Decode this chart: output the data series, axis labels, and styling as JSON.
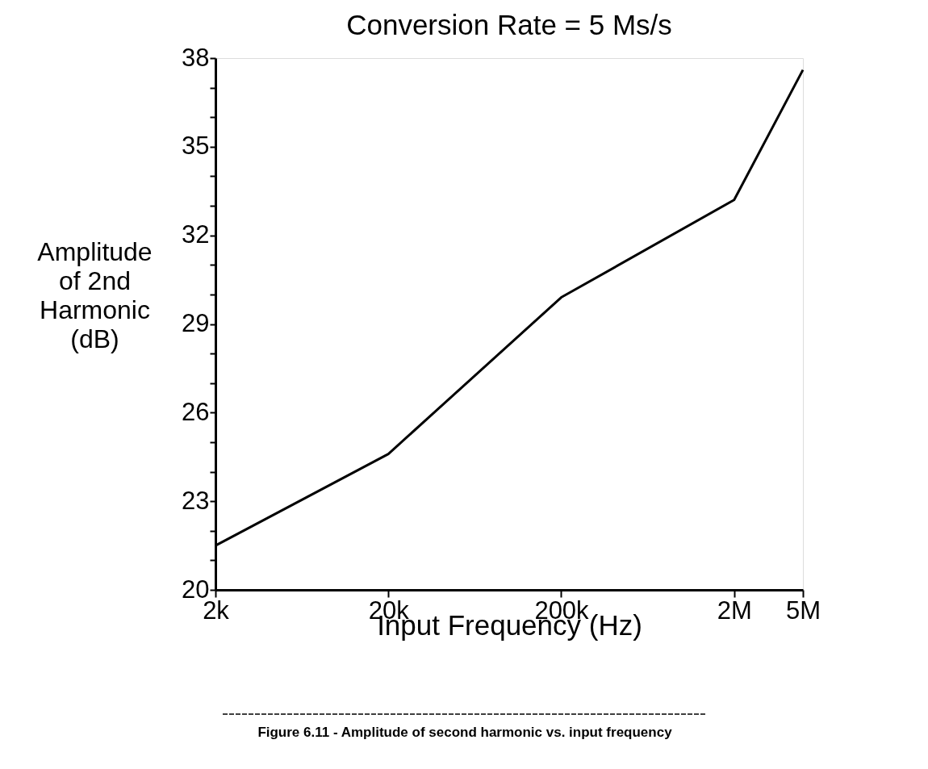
{
  "chart_data": {
    "type": "line",
    "title": "Conversion Rate = 5 Ms/s",
    "xlabel": "Input Frequency (Hz)",
    "ylabel": "Amplitude of 2nd Harmonic (dB)",
    "x": [
      2000,
      20000,
      200000,
      2000000,
      5000000
    ],
    "series": [
      {
        "color": "#000000",
        "values": [
          21.5,
          24.6,
          29.9,
          33.2,
          37.6
        ]
      }
    ],
    "log": "x",
    "xlim": [
      2000,
      5000000
    ],
    "xticks": [
      {
        "value": 2000,
        "label": "2k"
      },
      {
        "value": 20000,
        "label": "20k"
      },
      {
        "value": 200000,
        "label": "200k"
      },
      {
        "value": 2000000,
        "label": "2M"
      },
      {
        "value": 5000000,
        "label": "5M"
      }
    ],
    "ylim": [
      20,
      38
    ],
    "yticks": [
      20,
      {
        "value": 21,
        "label": null
      },
      {
        "value": 22,
        "label": null
      },
      23,
      {
        "value": 24,
        "label": null
      },
      {
        "value": 25,
        "label": null
      },
      26,
      {
        "value": 27,
        "label": null
      },
      {
        "value": 28,
        "label": null
      },
      29,
      {
        "value": 30,
        "label": null
      },
      {
        "value": 31,
        "label": null
      },
      32,
      {
        "value": 33,
        "label": null
      },
      {
        "value": 34,
        "label": null
      },
      35,
      {
        "value": 36,
        "label": null
      },
      {
        "value": 37,
        "label": null
      },
      38
    ],
    "grid": false,
    "legend": false,
    "marker": "none",
    "line_style": "solid",
    "annotations": [
      "Figure 6.11 - Amplitude of second harmonic vs. input frequency"
    ]
  }
}
